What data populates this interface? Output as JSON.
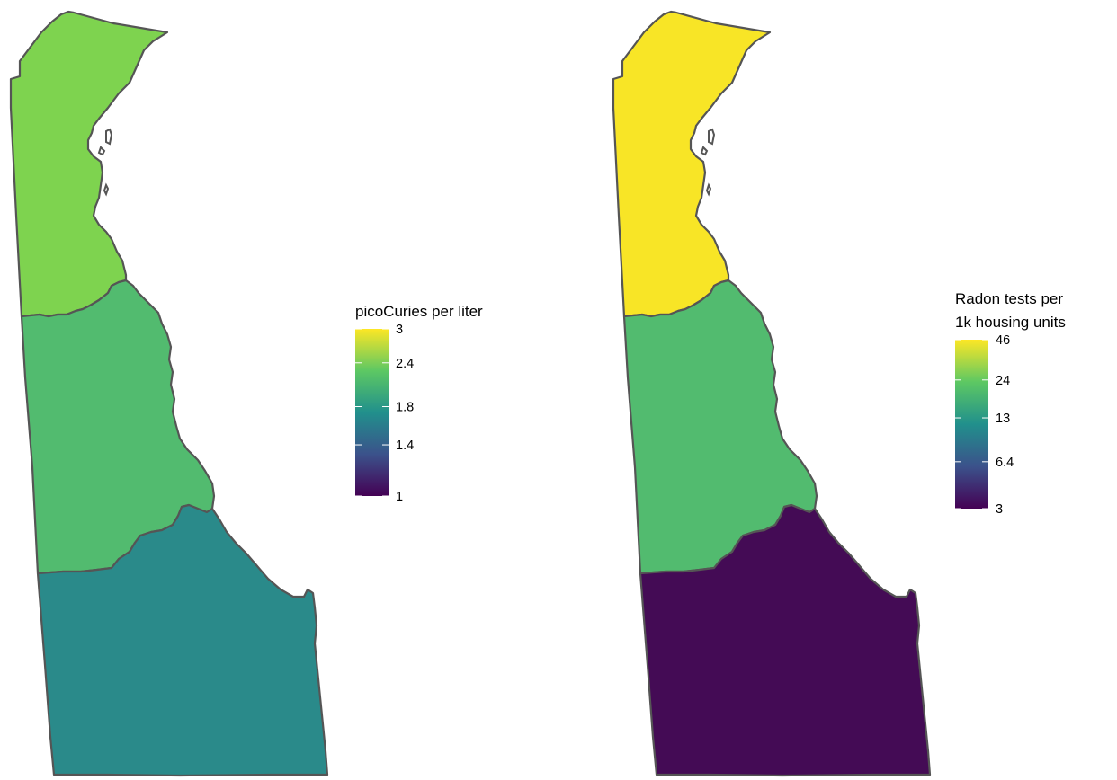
{
  "maps": [
    {
      "legend": {
        "title_lines": [
          "picoCuries per liter"
        ],
        "ticks": [
          {
            "label": "3",
            "value": 3
          },
          {
            "label": "2.4",
            "value": 2.4
          },
          {
            "label": "1.8",
            "value": 1.8
          },
          {
            "label": "1.4",
            "value": 1.4
          },
          {
            "label": "1",
            "value": 1
          }
        ],
        "scale": "viridis, log"
      },
      "counties": [
        {
          "region": "north",
          "color": "#7ED34F"
        },
        {
          "region": "middle",
          "color": "#52BB6F"
        },
        {
          "region": "south",
          "color": "#2A8A8A"
        }
      ]
    },
    {
      "legend": {
        "title_lines": [
          "Radon tests per",
          "1k housing units"
        ],
        "ticks": [
          {
            "label": "46",
            "value": 46
          },
          {
            "label": "24",
            "value": 24
          },
          {
            "label": "13",
            "value": 13
          },
          {
            "label": "6.4",
            "value": 6.4
          },
          {
            "label": "3",
            "value": 3
          }
        ],
        "scale": "viridis, log"
      },
      "counties": [
        {
          "region": "north",
          "color": "#F8E526"
        },
        {
          "region": "middle",
          "color": "#52BB6F"
        },
        {
          "region": "south",
          "color": "#440B55"
        }
      ]
    }
  ],
  "colorbar_gradient": [
    "#440154",
    "#3B528B",
    "#21908C",
    "#5DC863",
    "#FDE725"
  ]
}
